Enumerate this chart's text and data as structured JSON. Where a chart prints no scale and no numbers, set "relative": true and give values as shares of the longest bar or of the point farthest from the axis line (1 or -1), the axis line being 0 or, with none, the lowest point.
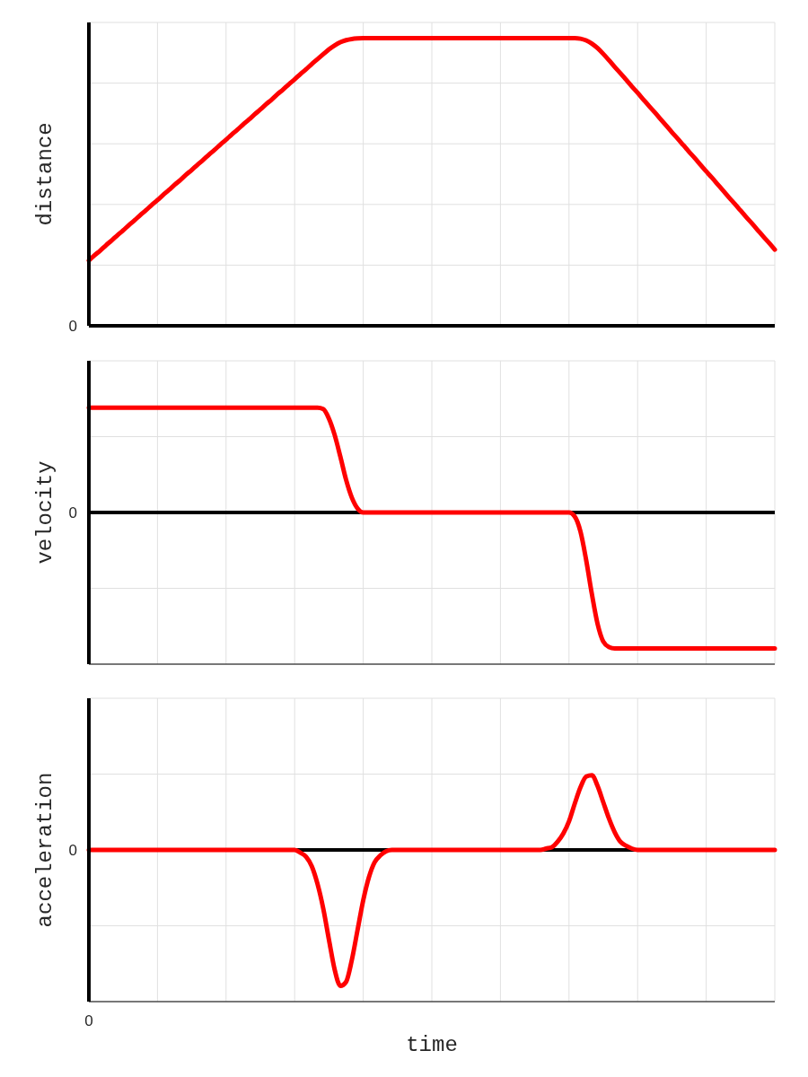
{
  "chart_data": [
    {
      "type": "line",
      "ylabel": "distance",
      "relative": true,
      "grid": true,
      "ref_lines": [
        {
          "axis": "y",
          "value": 0,
          "label": "0",
          "color": "#000000"
        }
      ],
      "categories": [
        null,
        null,
        null,
        null,
        null,
        null,
        null,
        null,
        null,
        null,
        null,
        null,
        null,
        null,
        null,
        null,
        null,
        null,
        null,
        null,
        null,
        null,
        null,
        null,
        null,
        null,
        null,
        null,
        null,
        null,
        null,
        null,
        null,
        null,
        null,
        null,
        null,
        null,
        null,
        null,
        null,
        null,
        null,
        null,
        null,
        null,
        null,
        null,
        null,
        null,
        null,
        null,
        null,
        null,
        null,
        null,
        null,
        null,
        null,
        null,
        null,
        null,
        null,
        null,
        null,
        null,
        null,
        null,
        null,
        null,
        null,
        null,
        null,
        null,
        null,
        null,
        null,
        null,
        null,
        null,
        null,
        null,
        null,
        null,
        null,
        null,
        null,
        null,
        null,
        null,
        null,
        null,
        null,
        null,
        null,
        null,
        null,
        null,
        null,
        null,
        null,
        null,
        null,
        null,
        null,
        null,
        null,
        null,
        null,
        null,
        null,
        null,
        null,
        null,
        null,
        null,
        null,
        null,
        null,
        null,
        null
      ],
      "series": [
        {
          "color": "#ff0000",
          "values": [
            0.227,
            0.245,
            0.262,
            0.28,
            0.297,
            0.315,
            0.332,
            0.35,
            0.367,
            0.385,
            0.402,
            0.42,
            0.437,
            0.455,
            0.472,
            0.49,
            0.507,
            0.525,
            0.542,
            0.56,
            0.577,
            0.595,
            0.612,
            0.63,
            0.647,
            0.665,
            0.682,
            0.7,
            0.717,
            0.735,
            0.752,
            0.77,
            0.787,
            0.805,
            0.822,
            0.84,
            0.857,
            0.875,
            0.892,
            0.91,
            0.927,
            0.944,
            0.961,
            0.975,
            0.986,
            0.993,
            0.997,
            0.999,
            1,
            1,
            1,
            1,
            1,
            1,
            1,
            1,
            1,
            1,
            1,
            1,
            1,
            1,
            1,
            1,
            1,
            1,
            1,
            1,
            1,
            1,
            1,
            1,
            1,
            1,
            1,
            1,
            1,
            1,
            1,
            1,
            1,
            1,
            1,
            1,
            1,
            1,
            0.998,
            0.992,
            0.981,
            0.965,
            0.945,
            0.923,
            0.9,
            0.878,
            0.855,
            0.832,
            0.81,
            0.787,
            0.764,
            0.742,
            0.719,
            0.696,
            0.673,
            0.651,
            0.628,
            0.605,
            0.583,
            0.56,
            0.537,
            0.515,
            0.492,
            0.469,
            0.446,
            0.424,
            0.401,
            0.378,
            0.356,
            0.333,
            0.31,
            0.288,
            0.265
          ]
        }
      ]
    },
    {
      "type": "line",
      "ylabel": "velocity",
      "relative": true,
      "grid": true,
      "ref_lines": [
        {
          "axis": "y",
          "value": 0,
          "label": "0",
          "color": "#000000"
        }
      ],
      "categories": [
        null,
        null,
        null,
        null,
        null,
        null,
        null,
        null,
        null,
        null,
        null,
        null,
        null,
        null,
        null,
        null,
        null,
        null,
        null,
        null,
        null,
        null,
        null,
        null,
        null,
        null,
        null,
        null,
        null,
        null,
        null,
        null,
        null,
        null,
        null,
        null,
        null,
        null,
        null,
        null,
        null,
        null,
        null,
        null,
        null,
        null,
        null,
        null,
        null,
        null,
        null,
        null,
        null,
        null,
        null,
        null,
        null,
        null,
        null,
        null,
        null,
        null,
        null,
        null,
        null,
        null,
        null,
        null,
        null,
        null,
        null,
        null,
        null,
        null,
        null,
        null,
        null,
        null,
        null,
        null,
        null,
        null,
        null,
        null,
        null,
        null,
        null,
        null,
        null,
        null,
        null,
        null,
        null,
        null,
        null,
        null,
        null,
        null,
        null,
        null,
        null,
        null,
        null,
        null,
        null,
        null,
        null,
        null,
        null,
        null,
        null,
        null,
        null,
        null,
        null,
        null,
        null,
        null,
        null,
        null,
        null
      ],
      "series": [
        {
          "color": "#ff0000",
          "values": [
            0.77,
            0.77,
            0.77,
            0.77,
            0.77,
            0.77,
            0.77,
            0.77,
            0.77,
            0.77,
            0.77,
            0.77,
            0.77,
            0.77,
            0.77,
            0.77,
            0.77,
            0.77,
            0.77,
            0.77,
            0.77,
            0.77,
            0.77,
            0.77,
            0.77,
            0.77,
            0.77,
            0.77,
            0.77,
            0.77,
            0.77,
            0.77,
            0.77,
            0.77,
            0.77,
            0.77,
            0.77,
            0.77,
            0.77,
            0.77,
            0.77,
            0.76,
            0.69,
            0.57,
            0.41,
            0.24,
            0.11,
            0.03,
            0,
            0,
            0,
            0,
            0,
            0,
            0,
            0,
            0,
            0,
            0,
            0,
            0,
            0,
            0,
            0,
            0,
            0,
            0,
            0,
            0,
            0,
            0,
            0,
            0,
            0,
            0,
            0,
            0,
            0,
            0,
            0,
            0,
            0,
            0,
            0,
            0,
            -0.03,
            -0.14,
            -0.35,
            -0.6,
            -0.82,
            -0.95,
            -0.99,
            -1,
            -1,
            -1,
            -1,
            -1,
            -1,
            -1,
            -1,
            -1,
            -1,
            -1,
            -1,
            -1,
            -1,
            -1,
            -1,
            -1,
            -1,
            -1,
            -1,
            -1,
            -1,
            -1,
            -1,
            -1,
            -1,
            -1,
            -1,
            -1
          ]
        }
      ]
    },
    {
      "type": "line",
      "ylabel": "acceleration",
      "xlabel": "time",
      "relative": true,
      "grid": true,
      "annotations": [
        "0"
      ],
      "ref_lines": [
        {
          "axis": "y",
          "value": 0,
          "label": "0",
          "color": "#000000"
        }
      ],
      "categories": [
        null,
        null,
        null,
        null,
        null,
        null,
        null,
        null,
        null,
        null,
        null,
        null,
        null,
        null,
        null,
        null,
        null,
        null,
        null,
        null,
        null,
        null,
        null,
        null,
        null,
        null,
        null,
        null,
        null,
        null,
        null,
        null,
        null,
        null,
        null,
        null,
        null,
        null,
        null,
        null,
        null,
        null,
        null,
        null,
        null,
        null,
        null,
        null,
        null,
        null,
        null,
        null,
        null,
        null,
        null,
        null,
        null,
        null,
        null,
        null,
        null,
        null,
        null,
        null,
        null,
        null,
        null,
        null,
        null,
        null,
        null,
        null,
        null,
        null,
        null,
        null,
        null,
        null,
        null,
        null,
        null,
        null,
        null,
        null,
        null,
        null,
        null,
        null,
        null,
        null,
        null,
        null,
        null,
        null,
        null,
        null,
        null,
        null,
        null,
        null,
        null,
        null,
        null,
        null,
        null,
        null,
        null,
        null,
        null,
        null,
        null,
        null,
        null,
        null,
        null,
        null,
        null,
        null,
        null,
        null,
        null
      ],
      "series": [
        {
          "color": "#ff0000",
          "values": [
            0,
            0,
            0,
            0,
            0,
            0,
            0,
            0,
            0,
            0,
            0,
            0,
            0,
            0,
            0,
            0,
            0,
            0,
            0,
            0,
            0,
            0,
            0,
            0,
            0,
            0,
            0,
            0,
            0,
            0,
            0,
            0,
            0,
            0,
            0,
            0,
            0,
            -0.02,
            -0.05,
            -0.12,
            -0.25,
            -0.43,
            -0.66,
            -0.88,
            -1,
            -0.97,
            -0.81,
            -0.59,
            -0.37,
            -0.2,
            -0.09,
            -0.04,
            -0.01,
            0,
            0,
            0,
            0,
            0,
            0,
            0,
            0,
            0,
            0,
            0,
            0,
            0,
            0,
            0,
            0,
            0,
            0,
            0,
            0,
            0,
            0,
            0,
            0,
            0,
            0,
            0,
            0.01,
            0.02,
            0.06,
            0.12,
            0.21,
            0.34,
            0.46,
            0.54,
            0.55,
            0.47,
            0.35,
            0.23,
            0.13,
            0.06,
            0.03,
            0.01,
            0,
            0,
            0,
            0,
            0,
            0,
            0,
            0,
            0,
            0,
            0,
            0,
            0,
            0,
            0,
            0,
            0,
            0,
            0,
            0,
            0,
            0,
            0,
            0,
            0
          ]
        }
      ]
    }
  ]
}
